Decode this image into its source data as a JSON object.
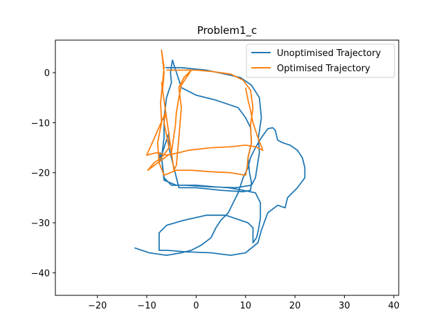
{
  "chart_data": {
    "type": "line",
    "title": "Problem1_c",
    "xlabel": "",
    "ylabel": "",
    "xlim": [
      -28.5,
      41
    ],
    "ylim": [
      -44.5,
      6.5
    ],
    "xticks": [
      -20,
      -10,
      0,
      10,
      20,
      30,
      40
    ],
    "yticks": [
      0,
      -10,
      -20,
      -30,
      -40
    ],
    "grid": false,
    "legend_position": "top-right",
    "series": [
      {
        "name": "Unoptimised Trajectory",
        "color": "#1f77b4",
        "x": [
          -6.2,
          -3.0,
          2.0,
          6.0,
          9.0,
          11.2,
          12.8,
          13.2,
          12.6,
          12.8,
          12.4,
          12.0,
          11.2,
          8.0,
          2.5,
          -2.0,
          -5.0,
          -6.5,
          -7.0,
          -6.5,
          -6.5,
          -6.0,
          -5.0,
          -5.2,
          -4.8,
          -3.0,
          0.0,
          4.0,
          8.5,
          10.0,
          11.0,
          11.2,
          10.5,
          10.8,
          11.2,
          11.0,
          9.5,
          5.0,
          0.0,
          -3.5,
          -4.5,
          -5.5,
          -5.5,
          -7.5,
          -7.3,
          -7.0,
          -6.5,
          -4.0,
          0.0,
          3.5,
          6.5,
          9.5,
          12.0,
          13.0,
          13.0,
          12.6,
          12.2,
          11.5,
          11.5,
          10.5,
          6.0,
          2.0,
          -2.5,
          -6.0,
          -7.5,
          -7.5,
          -7.5,
          -6.0,
          -2.0,
          3.0,
          7.0,
          10.0,
          12.5,
          13.2,
          14.5,
          16.5,
          18.0,
          18.5,
          20.5,
          22.0,
          22.0,
          21.5,
          20.5,
          19.0,
          17.5,
          16.5,
          16.0,
          15.5,
          14.5,
          13.2,
          12.0,
          11.0,
          10.5,
          9.5,
          9.0,
          8.5,
          7.5,
          6.5,
          5.0,
          4.0,
          3.0,
          1.0,
          -1.0,
          -3.0,
          -6.0,
          -9.5,
          -12.5
        ],
        "y": [
          1.0,
          1.0,
          0.5,
          -0.3,
          -1.0,
          -2.5,
          -5.0,
          -9.0,
          -13.0,
          -16.0,
          -18.5,
          -21.0,
          -22.5,
          -23.0,
          -22.8,
          -22.5,
          -22.5,
          -21.0,
          -17.0,
          -13.0,
          -9.0,
          -5.0,
          -2.0,
          0.0,
          2.5,
          -3.0,
          -4.5,
          -5.5,
          -7.0,
          -9.0,
          -11.0,
          -14.0,
          -17.0,
          -20.0,
          -22.0,
          -23.5,
          -23.8,
          -23.5,
          -23.0,
          -23.0,
          -19.0,
          -15.0,
          -12.0,
          -18.0,
          -16.0,
          -17.0,
          -21.5,
          -22.5,
          -22.5,
          -22.8,
          -23.0,
          -23.5,
          -24.0,
          -26.0,
          -29.0,
          -31.5,
          -33.0,
          -34.0,
          -31.0,
          -30.0,
          -28.5,
          -28.5,
          -29.5,
          -30.5,
          -32.0,
          -33.5,
          -35.5,
          -35.5,
          -35.8,
          -36.0,
          -36.5,
          -36.0,
          -34.0,
          -31.5,
          -28.0,
          -26.5,
          -27.0,
          -25.0,
          -23.0,
          -21.0,
          -19.0,
          -17.0,
          -15.5,
          -14.5,
          -14.0,
          -13.5,
          -11.5,
          -11.0,
          -11.2,
          -13.0,
          -15.0,
          -17.0,
          -19.0,
          -21.0,
          -22.5,
          -24.0,
          -26.0,
          -28.0,
          -29.5,
          -31.0,
          -33.0,
          -34.5,
          -35.5,
          -36.0,
          -36.5,
          -36.0,
          -35.0
        ]
      },
      {
        "name": "Optimised Trajectory",
        "color": "#ff7f0e",
        "x": [
          -6.0,
          -3.0,
          0.0,
          3.5,
          7.0,
          9.5,
          11.0,
          11.5,
          11.0,
          11.2,
          10.5,
          10.3,
          10.0,
          7.0,
          3.0,
          -1.0,
          -4.0,
          -6.5,
          -7.5,
          -7.8,
          -7.0,
          -7.2,
          -6.8,
          -6.5,
          -7.0,
          -6.5,
          -6.8,
          -7.0,
          -4.5,
          -4.0,
          -3.5,
          -3.0,
          -3.5,
          -2.5,
          -1.0,
          -3.0,
          -3.5,
          -4.0,
          -4.2,
          -5.0,
          -9.8,
          -8.5,
          -7.0,
          -5.5,
          -6.0,
          -6.5,
          -6.2,
          -10.0,
          -8.0,
          -6.0,
          -3.5,
          -1.5,
          3.0,
          7.0,
          10.0,
          12.0,
          13.5,
          12.5,
          11.5,
          11.0,
          10.5,
          10.0
        ],
        "y": [
          0.5,
          0.5,
          0.5,
          0.2,
          -0.3,
          -1.5,
          -3.5,
          -7.0,
          -10.5,
          -14.0,
          -17.0,
          -19.0,
          -20.5,
          -20.0,
          -19.8,
          -19.5,
          -19.5,
          -20.5,
          -18.0,
          -14.0,
          -10.0,
          -6.0,
          -2.0,
          1.0,
          4.5,
          0.0,
          -3.5,
          -2.0,
          -19.5,
          -18.5,
          -13.0,
          -7.0,
          -3.0,
          -1.0,
          0.5,
          -2.5,
          -5.0,
          -8.0,
          -10.5,
          -16.0,
          -19.5,
          -18.0,
          -17.0,
          -15.0,
          -12.5,
          -10.0,
          -8.0,
          -16.5,
          -16.0,
          -16.5,
          -16.0,
          -15.5,
          -15.0,
          -14.8,
          -14.5,
          -14.8,
          -15.5,
          -13.0,
          -10.0,
          -7.5,
          -5.5,
          -3.0
        ]
      }
    ]
  }
}
